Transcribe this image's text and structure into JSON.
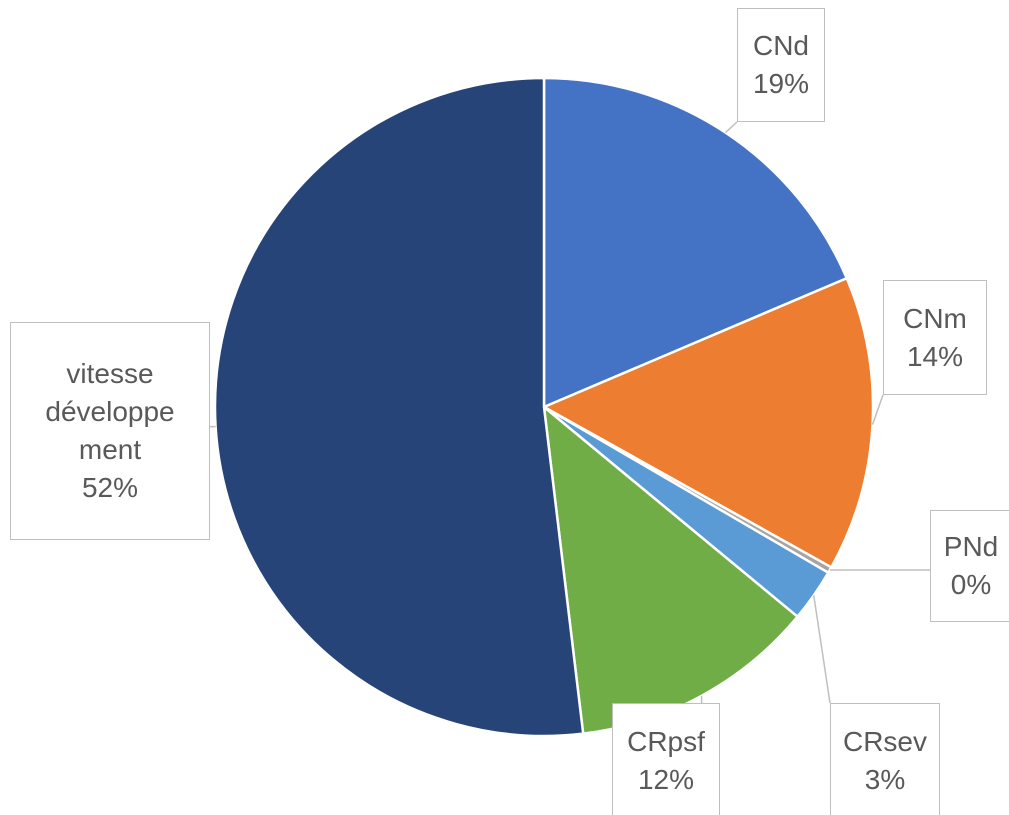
{
  "chart_data": {
    "type": "pie",
    "categories": [
      "CNd",
      "CNm",
      "PNd",
      "CRsev",
      "CRpsf",
      "vitesse développement"
    ],
    "values": [
      18.6,
      14.5,
      0.3,
      2.6,
      12.1,
      51.9
    ],
    "value_labels": [
      "19%",
      "14%",
      "0%",
      "3%",
      "12%",
      "52%"
    ],
    "colors": [
      "#4472c4",
      "#ed7d31",
      "#a5a5a5",
      "#5b9bd5",
      "#70ad47",
      "#264478"
    ]
  }
}
